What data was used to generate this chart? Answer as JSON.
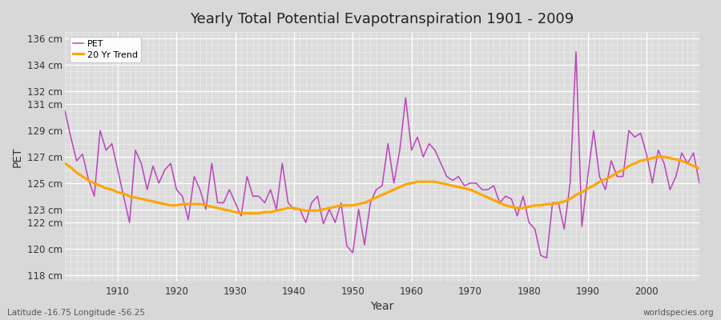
{
  "title": "Yearly Total Potential Evapotranspiration 1901 - 2009",
  "xlabel": "Year",
  "ylabel": "PET",
  "subtitle": "Latitude -16.75 Longitude -56.25",
  "watermark": "worldspecies.org",
  "pet_color": "#bb44bb",
  "trend_color": "#FFA500",
  "bg_color": "#d8d8d8",
  "plot_bg_color": "#dcdcdc",
  "ylim": [
    117.5,
    136.5
  ],
  "ytick_values": [
    118,
    120,
    122,
    123,
    125,
    127,
    129,
    131,
    132,
    134,
    136
  ],
  "xlim_min": 1901,
  "xlim_max": 2009,
  "xticks": [
    1910,
    1920,
    1930,
    1940,
    1950,
    1960,
    1970,
    1980,
    1990,
    2000
  ],
  "years": [
    1901,
    1902,
    1903,
    1904,
    1905,
    1906,
    1907,
    1908,
    1909,
    1910,
    1911,
    1912,
    1913,
    1914,
    1915,
    1916,
    1917,
    1918,
    1919,
    1920,
    1921,
    1922,
    1923,
    1924,
    1925,
    1926,
    1927,
    1928,
    1929,
    1930,
    1931,
    1932,
    1933,
    1934,
    1935,
    1936,
    1937,
    1938,
    1939,
    1940,
    1941,
    1942,
    1943,
    1944,
    1945,
    1946,
    1947,
    1948,
    1949,
    1950,
    1951,
    1952,
    1953,
    1954,
    1955,
    1956,
    1957,
    1958,
    1959,
    1960,
    1961,
    1962,
    1963,
    1964,
    1965,
    1966,
    1967,
    1968,
    1969,
    1970,
    1971,
    1972,
    1973,
    1974,
    1975,
    1976,
    1977,
    1978,
    1979,
    1980,
    1981,
    1982,
    1983,
    1984,
    1985,
    1986,
    1987,
    1988,
    1989,
    1990,
    1991,
    1992,
    1993,
    1994,
    1995,
    1996,
    1997,
    1998,
    1999,
    2000,
    2001,
    2002,
    2003,
    2004,
    2005,
    2006,
    2007,
    2008,
    2009
  ],
  "pet_values": [
    130.5,
    128.5,
    126.7,
    127.2,
    125.3,
    124.0,
    129.0,
    127.5,
    128.0,
    126.0,
    124.0,
    122.0,
    127.5,
    126.5,
    124.5,
    126.3,
    125.0,
    126.0,
    126.5,
    124.5,
    124.0,
    122.2,
    125.5,
    124.5,
    123.0,
    126.5,
    123.5,
    123.5,
    124.5,
    123.5,
    122.5,
    125.5,
    124.0,
    124.0,
    123.5,
    124.5,
    123.0,
    126.5,
    123.5,
    123.0,
    123.0,
    122.0,
    123.5,
    124.0,
    121.9,
    123.0,
    122.0,
    123.5,
    120.2,
    119.7,
    123.0,
    120.3,
    123.5,
    124.5,
    124.8,
    128.0,
    125.0,
    127.5,
    131.5,
    127.5,
    128.5,
    127.0,
    128.0,
    127.5,
    126.5,
    125.5,
    125.2,
    125.5,
    124.8,
    125.0,
    125.0,
    124.5,
    124.5,
    124.8,
    123.5,
    124.0,
    123.8,
    122.5,
    124.0,
    122.0,
    121.5,
    119.5,
    119.3,
    123.5,
    123.5,
    121.5,
    125.0,
    135.0,
    121.7,
    125.5,
    129.0,
    125.5,
    124.5,
    126.7,
    125.5,
    125.5,
    129.0,
    128.5,
    128.8,
    127.2,
    125.0,
    127.5,
    126.5,
    124.5,
    125.5,
    127.3,
    126.5,
    127.3,
    125.0
  ],
  "trend_values": [
    126.5,
    126.2,
    125.8,
    125.5,
    125.2,
    125.0,
    124.8,
    124.6,
    124.5,
    124.3,
    124.2,
    124.0,
    123.9,
    123.8,
    123.7,
    123.6,
    123.5,
    123.4,
    123.3,
    123.3,
    123.4,
    123.4,
    123.4,
    123.4,
    123.3,
    123.2,
    123.1,
    123.0,
    122.9,
    122.8,
    122.7,
    122.7,
    122.7,
    122.7,
    122.8,
    122.8,
    122.9,
    123.0,
    123.1,
    123.1,
    123.0,
    122.9,
    122.9,
    122.9,
    123.0,
    123.1,
    123.2,
    123.3,
    123.3,
    123.3,
    123.4,
    123.5,
    123.7,
    123.9,
    124.1,
    124.3,
    124.5,
    124.7,
    124.9,
    125.0,
    125.1,
    125.1,
    125.1,
    125.1,
    125.0,
    124.9,
    124.8,
    124.7,
    124.6,
    124.5,
    124.3,
    124.1,
    123.9,
    123.7,
    123.5,
    123.3,
    123.2,
    123.1,
    123.1,
    123.2,
    123.3,
    123.3,
    123.4,
    123.4,
    123.5,
    123.6,
    123.8,
    124.1,
    124.3,
    124.6,
    124.8,
    125.1,
    125.3,
    125.5,
    125.8,
    126.0,
    126.3,
    126.5,
    126.7,
    126.8,
    126.9,
    127.0,
    127.0,
    126.9,
    126.8,
    126.7,
    126.5,
    126.3,
    126.1
  ]
}
